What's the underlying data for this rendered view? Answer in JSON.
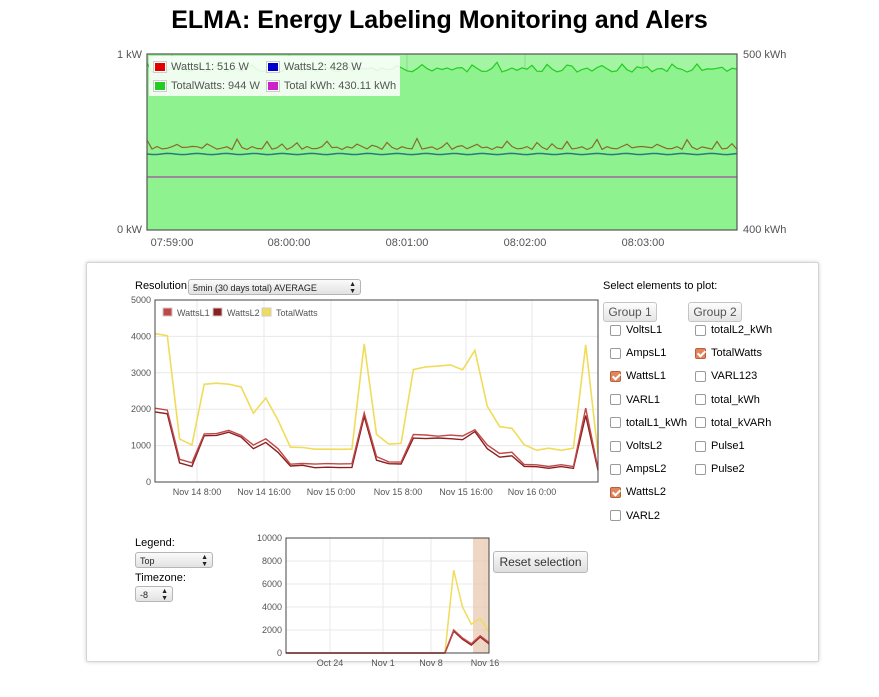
{
  "page": {
    "title": "ELMA: Energy Labeling Monitoring and Alers"
  },
  "live": {
    "y_left_top": "1 kW",
    "y_left_bottom": "0 kW",
    "y_right_top": "500 kWh",
    "y_right_bottom": "400 kWh",
    "time_ticks": [
      "07:59:00",
      "08:00:00",
      "08:01:00",
      "08:02:00",
      "08:03:00"
    ],
    "legend": [
      {
        "label": "WattsL1: 516 W",
        "color": "#e00000"
      },
      {
        "label": "WattsL2: 428 W",
        "color": "#0000cc"
      },
      {
        "label": "TotalWatts: 944 W",
        "color": "#22cc22"
      },
      {
        "label": "Total kWh: 430.11 kWh",
        "color": "#cc22cc"
      }
    ]
  },
  "controls": {
    "resolution_label": "Resolution:",
    "resolution_value": "5min (30 days total) AVERAGE",
    "select_label": "Select elements to plot:",
    "legend_label": "Legend:",
    "legend_value": "Top",
    "timezone_label": "Timezone:",
    "timezone_value": "-8",
    "reset_label": "Reset selection"
  },
  "groups": [
    {
      "name": "Group 1",
      "items": [
        {
          "label": "VoltsL1",
          "checked": false
        },
        {
          "label": "AmpsL1",
          "checked": false
        },
        {
          "label": "WattsL1",
          "checked": true
        },
        {
          "label": "VARL1",
          "checked": false
        },
        {
          "label": "totalL1_kWh",
          "checked": false
        },
        {
          "label": "VoltsL2",
          "checked": false
        },
        {
          "label": "AmpsL2",
          "checked": false
        },
        {
          "label": "WattsL2",
          "checked": true
        },
        {
          "label": "VARL2",
          "checked": false
        }
      ]
    },
    {
      "name": "Group 2",
      "items": [
        {
          "label": "totalL2_kWh",
          "checked": false
        },
        {
          "label": "TotalWatts",
          "checked": true
        },
        {
          "label": "VARL123",
          "checked": false
        },
        {
          "label": "total_kWh",
          "checked": false
        },
        {
          "label": "total_kVARh",
          "checked": false
        },
        {
          "label": "Pulse1",
          "checked": false
        },
        {
          "label": "Pulse2",
          "checked": false
        }
      ]
    }
  ],
  "chart_data": [
    {
      "type": "area",
      "x": [
        "07:59:00",
        "08:00:00",
        "08:01:00",
        "08:02:00",
        "08:03:00"
      ],
      "ylim": [
        0,
        1000
      ],
      "y_right_lim": [
        400,
        500
      ],
      "series": [
        {
          "name": "WattsL1",
          "values": [
            516,
            516,
            516,
            516,
            516
          ]
        },
        {
          "name": "WattsL2",
          "values": [
            428,
            428,
            428,
            428,
            428
          ]
        },
        {
          "name": "TotalWatts",
          "values": [
            944,
            944,
            944,
            944,
            944
          ]
        },
        {
          "name": "Total kWh",
          "values": [
            430.11,
            430.11,
            430.11,
            430.11,
            430.11
          ]
        }
      ]
    },
    {
      "type": "line",
      "x_ticks": [
        "Nov 14 8:00",
        "Nov 14 16:00",
        "Nov 15 0:00",
        "Nov 15 8:00",
        "Nov 15 16:00",
        "Nov 16 0:00"
      ],
      "y_ticks": [
        0,
        1000,
        2000,
        3000,
        4000,
        5000
      ],
      "ylim": [
        0,
        5000
      ],
      "series": [
        {
          "name": "WattsL1",
          "color": "#c14848",
          "values": [
            2000,
            2000,
            600,
            550,
            1300,
            1350,
            1400,
            1300,
            1000,
            1200,
            900,
            500,
            500,
            500,
            500,
            500,
            500,
            1900,
            700,
            550,
            550,
            1300,
            1300,
            1250,
            1300,
            1250,
            1450,
            1000,
            800,
            800,
            500,
            450,
            450,
            450,
            450,
            2000,
            400
          ]
        },
        {
          "name": "WattsL2",
          "color": "#8b2020",
          "values": [
            1900,
            1900,
            500,
            450,
            1250,
            1300,
            1350,
            1250,
            900,
            1100,
            800,
            450,
            450,
            400,
            400,
            400,
            400,
            1800,
            600,
            500,
            500,
            1200,
            1200,
            1200,
            1200,
            1150,
            1400,
            900,
            700,
            700,
            450,
            400,
            400,
            400,
            400,
            1800,
            350
          ]
        },
        {
          "name": "TotalWatts",
          "color": "#f0dc5a",
          "values": [
            4100,
            4000,
            1200,
            1000,
            2700,
            2700,
            2700,
            2600,
            1900,
            2300,
            1700,
            950,
            950,
            900,
            900,
            900,
            900,
            3800,
            1300,
            1050,
            1050,
            3100,
            3150,
            3200,
            3200,
            3100,
            3600,
            2100,
            1500,
            1500,
            1000,
            900,
            900,
            900,
            900,
            3800,
            750
          ]
        }
      ]
    },
    {
      "type": "line",
      "x_ticks": [
        "Oct 24",
        "Nov 1",
        "Nov 8",
        "Nov 16"
      ],
      "y_ticks": [
        0,
        2000,
        4000,
        6000,
        8000,
        10000
      ],
      "ylim": [
        0,
        10000
      ],
      "series": [
        {
          "name": "WattsL1",
          "values": [
            0,
            0,
            0,
            0,
            0,
            0,
            0,
            0,
            0,
            0,
            0,
            0,
            0,
            0,
            0,
            0,
            0,
            0,
            0,
            2000,
            1300,
            800,
            1500,
            900
          ]
        },
        {
          "name": "WattsL2",
          "values": [
            0,
            0,
            0,
            0,
            0,
            0,
            0,
            0,
            0,
            0,
            0,
            0,
            0,
            0,
            0,
            0,
            0,
            0,
            0,
            1900,
            1200,
            700,
            1400,
            800
          ]
        },
        {
          "name": "TotalWatts",
          "values": [
            0,
            0,
            0,
            0,
            0,
            0,
            0,
            0,
            0,
            0,
            0,
            0,
            0,
            0,
            0,
            0,
            0,
            0,
            0,
            7200,
            4000,
            2500,
            3000,
            1800
          ]
        }
      ]
    }
  ]
}
